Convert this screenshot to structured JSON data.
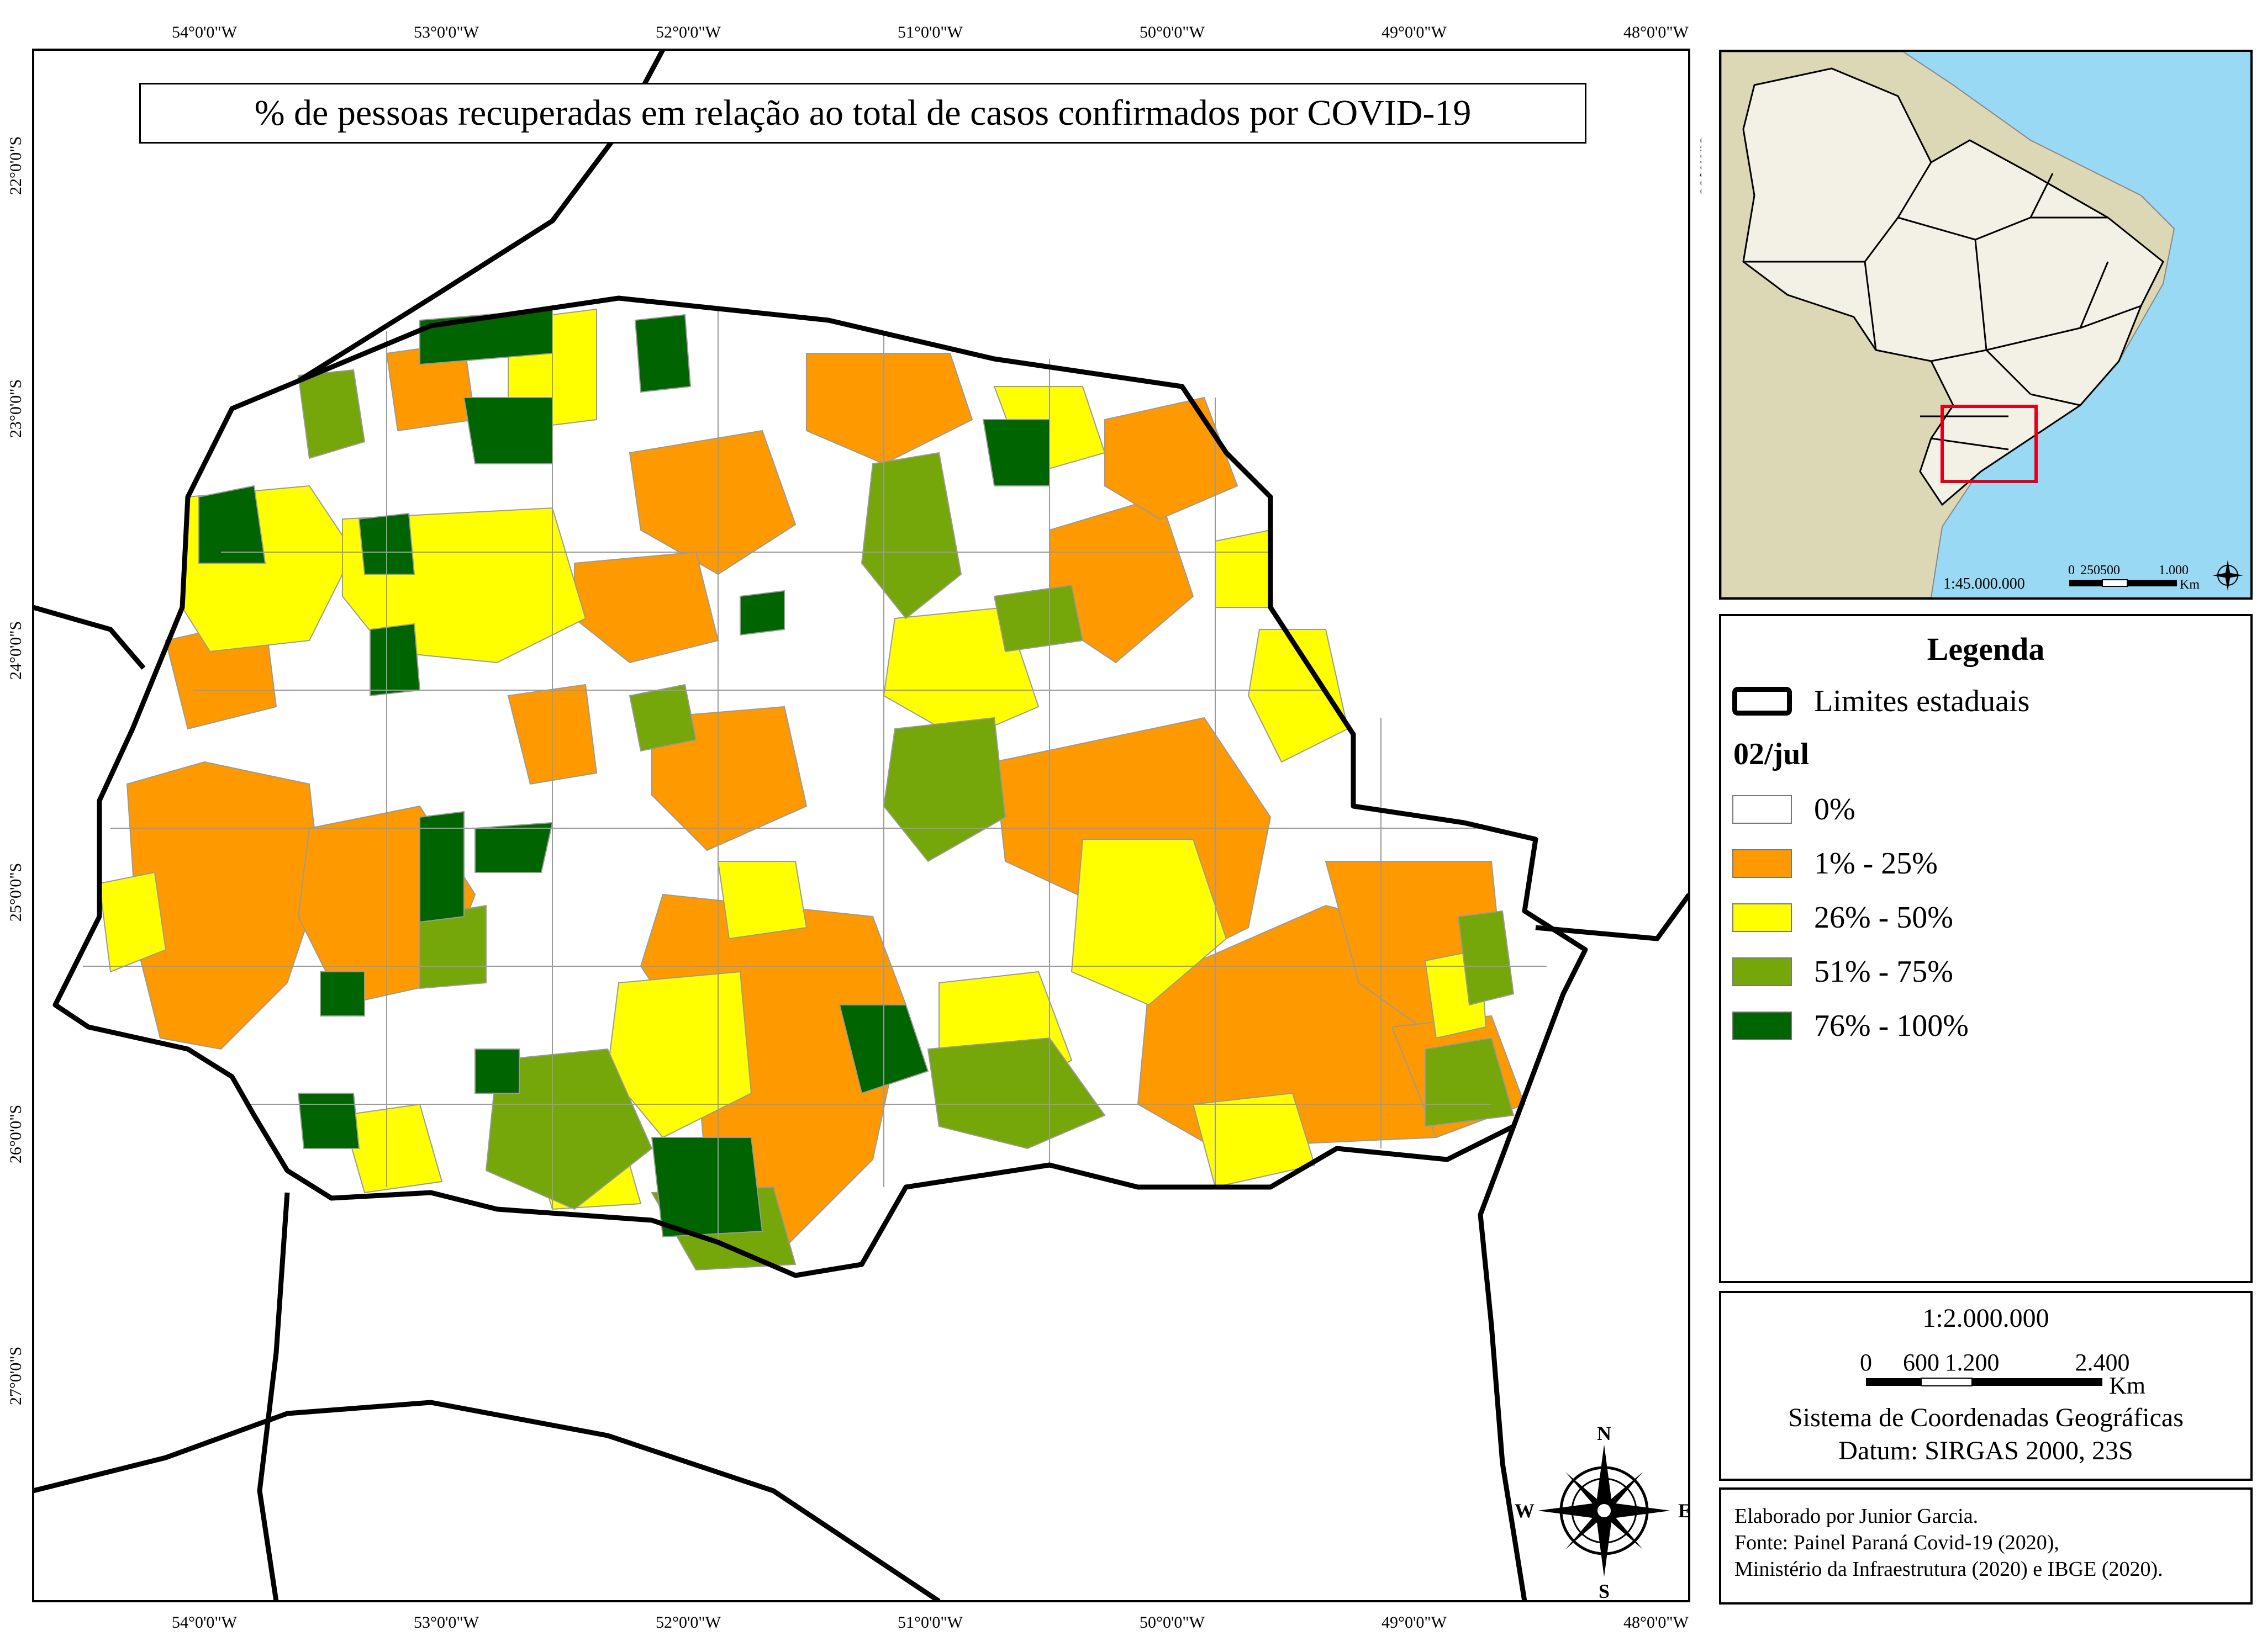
{
  "title": "% de pessoas recuperadas em relação ao total de casos confirmados por COVID-19",
  "axes": {
    "longitude_labels": [
      "54°0'0\"W",
      "53°0'0\"W",
      "52°0'0\"W",
      "51°0'0\"W",
      "50°0'0\"W",
      "49°0'0\"W",
      "48°0'0\"W"
    ],
    "latitude_labels": [
      "22°0'0\"S",
      "23°0'0\"S",
      "24°0'0\"S",
      "25°0'0\"S",
      "26°0'0\"S",
      "27°0'0\"S"
    ]
  },
  "inset": {
    "scale_text": "1:45.000.000",
    "scale_ticks": [
      "0",
      "250500",
      "1.000"
    ],
    "scale_unit": "Km",
    "colors": {
      "ocean": "#9ad9f3",
      "south_america": "#dcd7b4",
      "brazil": "#f3f1e6",
      "highlight": "#e0001a"
    }
  },
  "legend": {
    "heading": "Legenda",
    "boundary_label": "Limites estaduais",
    "date": "02/jul",
    "classes": [
      {
        "label": "0%",
        "color": "#ffffff"
      },
      {
        "label": "1% - 25%",
        "color": "#ff9900"
      },
      {
        "label": "26% - 50%",
        "color": "#ffff00"
      },
      {
        "label": "51% - 75%",
        "color": "#76a70a"
      },
      {
        "label": "76% - 100%",
        "color": "#006400"
      }
    ]
  },
  "scale": {
    "ratio": "1:2.000.000",
    "ticks": [
      "0",
      "600",
      "1.200",
      "2.400"
    ],
    "unit": "Km",
    "crs": "Sistema de Coordenadas Geográficas",
    "datum": "Datum: SIRGAS 2000, 23S"
  },
  "compass": {
    "north": "N",
    "south": "S",
    "east": "E",
    "west": "W"
  },
  "credits": {
    "author": "Elaborado por Junior Garcia.",
    "source_line1": "Fonte: Painel Paraná Covid-19 (2020),",
    "source_line2": "Ministério da Infraestrutura (2020) e IBGE (2020)."
  }
}
